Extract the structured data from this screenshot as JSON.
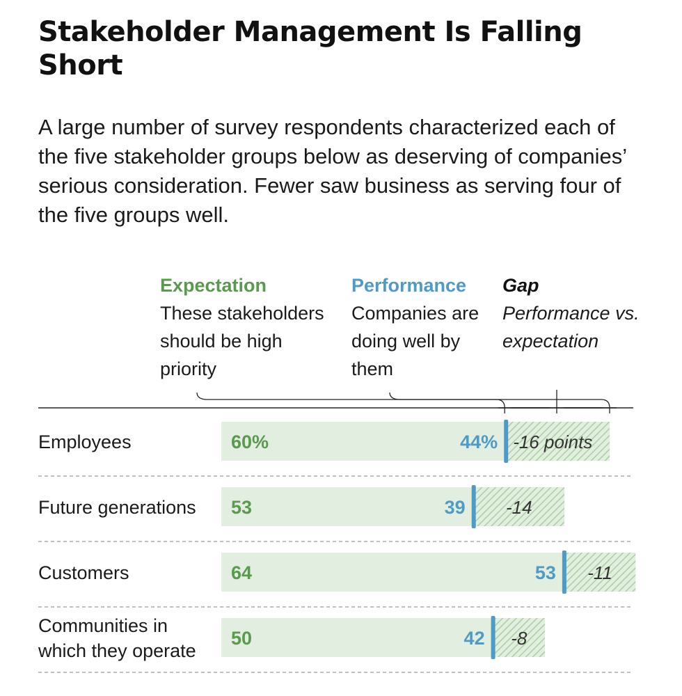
{
  "title": "Stakeholder Management Is Falling Short",
  "subtitle": "A large number of survey respondents characterized each of the five stakeholder groups below as deserving of companies’ serious consideration. Fewer saw business as serving four of the five groups well.",
  "legend": {
    "expectation": {
      "title": "Expectation",
      "desc": "These stakeholders should be high priority"
    },
    "performance": {
      "title": "Performance",
      "desc": "Companies are doing well by them"
    },
    "gap": {
      "title": "Gap",
      "desc": "Performance vs. expectation"
    }
  },
  "colors": {
    "expectation": "#5a9a4e",
    "performance": "#4f9bc6",
    "bar_fill": "#e2eedf",
    "gap_hatch": "#a9cfa1",
    "rule": "#222222",
    "divider": "#9a9a9a"
  },
  "chart_data": {
    "type": "bar",
    "categories": [
      "Employees",
      "Future generations",
      "Customers",
      "Communities in which they operate"
    ],
    "category_lines": [
      [
        "Employees"
      ],
      [
        "Future generations"
      ],
      [
        "Customers"
      ],
      [
        "Communities in",
        "which they operate"
      ]
    ],
    "series": [
      {
        "name": "Expectation",
        "values": [
          60,
          53,
          64,
          50
        ]
      },
      {
        "name": "Performance",
        "values": [
          44,
          39,
          53,
          42
        ]
      },
      {
        "name": "Gap",
        "values": [
          -16,
          -14,
          -11,
          -8
        ]
      }
    ],
    "expectation_labels": [
      "60%",
      "53",
      "64",
      "50"
    ],
    "performance_labels": [
      "44%",
      "39",
      "53",
      "42"
    ],
    "gap_labels": [
      "-16 points",
      "-14",
      "-11",
      "-8"
    ],
    "xlim": [
      0,
      64
    ],
    "grid": false,
    "legend_position": "top"
  }
}
